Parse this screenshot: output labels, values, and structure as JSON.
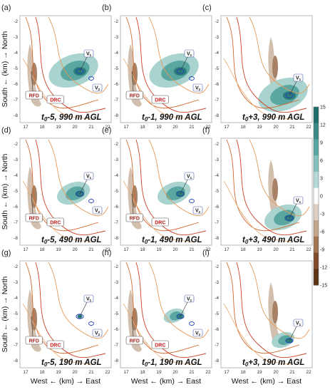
{
  "figure": {
    "panel_labels": [
      "(a)",
      "(b)",
      "(c)",
      "(d)",
      "(e)",
      "(f)",
      "(g)",
      "(h)",
      "(i)"
    ],
    "times": [
      [
        "t",
        "0",
        "-5, 990 m AGL"
      ],
      [
        "t",
        "0",
        "-1, 990 m AGL"
      ],
      [
        "t",
        "0",
        "+3, 990 m AGL"
      ],
      [
        "t",
        "0",
        "-5, 490 m AGL"
      ],
      [
        "t",
        "0",
        "-1, 490 m AGL"
      ],
      [
        "t",
        "0",
        "+3, 490 m AGL"
      ],
      [
        "t",
        "0",
        "-5, 190 m AGL"
      ],
      [
        "t",
        "0",
        "-1, 190 m AGL"
      ],
      [
        "t",
        "0",
        "+3, 190 m AGL"
      ]
    ],
    "x_ticks_left": [
      "17",
      "18",
      "19",
      "20",
      "21",
      "22"
    ],
    "x_ticks_right": [
      "17",
      "18",
      "19",
      "20",
      "21",
      "22"
    ],
    "y_ticks_left": [
      "-2",
      "-3",
      "-4",
      "-5",
      "-6",
      "-7",
      "-8"
    ],
    "y_ticks_right": [
      "-2",
      "-3",
      "-4",
      "-5",
      "-6",
      "-7",
      "-8"
    ],
    "y_axis_label": "South ← (km) → North",
    "x_axis_label": "West ← (km) → East",
    "annotations": {
      "rfd": "RFD",
      "drc": "DRC",
      "v1": "V",
      "v1_sub": "1",
      "v2": "V",
      "v2_sub": "2"
    },
    "colorbar": {
      "ticks": [
        "15",
        "12",
        "9",
        "6",
        "3",
        "0",
        "-3",
        "-6",
        "-9",
        "-12",
        "-15"
      ],
      "colors": [
        "#1f6e6c",
        "#3a8b87",
        "#5aa6a1",
        "#84c1bc",
        "#b3dad6",
        "#ffffff",
        "#ddcfc2",
        "#c2a58a",
        "#a27452",
        "#824d2b",
        "#5e3416"
      ]
    }
  }
}
